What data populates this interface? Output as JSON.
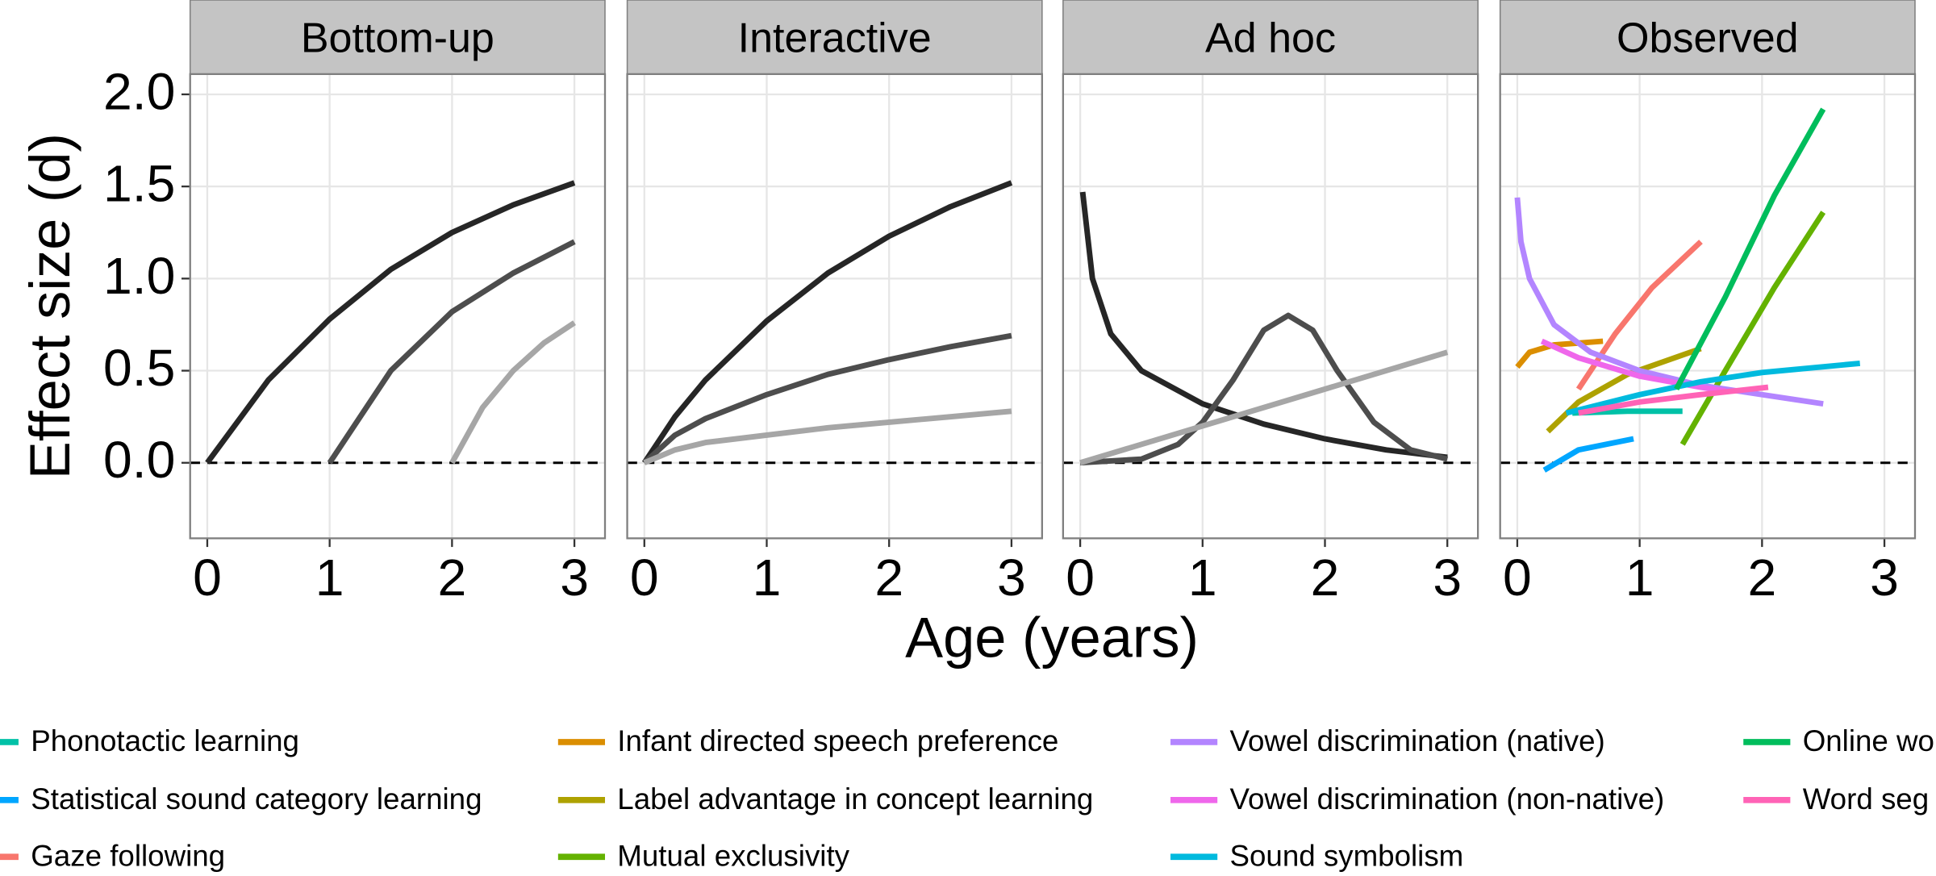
{
  "xlabel": "Age (years)",
  "ylabel": "Effect size (d)",
  "chart_data": [
    {
      "type": "line",
      "title": "Bottom-up",
      "xlim": [
        -0.14,
        3.25
      ],
      "xticks": [
        0,
        1,
        2,
        3
      ],
      "ylim": [
        -0.41,
        2.11
      ],
      "yticks": [
        {
          "value": 0,
          "label": "0.0"
        },
        {
          "value": 0.5,
          "label": "0.5"
        },
        {
          "value": 1,
          "label": "1.0"
        },
        {
          "value": 1.5,
          "label": "1.5"
        },
        {
          "value": 2,
          "label": "2.0"
        }
      ],
      "grid": true,
      "hline": 0,
      "series": [
        {
          "color": "#262626",
          "x": [
            0,
            0.5,
            1,
            1.5,
            2,
            2.5,
            3
          ],
          "values": [
            0,
            0.45,
            0.78,
            1.05,
            1.25,
            1.4,
            1.52
          ]
        },
        {
          "color": "#4d4d4d",
          "x": [
            1,
            1.5,
            2,
            2.5,
            3
          ],
          "values": [
            0,
            0.5,
            0.82,
            1.03,
            1.2
          ]
        },
        {
          "color": "#a6a6a6",
          "x": [
            2,
            2.25,
            2.5,
            2.75,
            3
          ],
          "values": [
            0,
            0.3,
            0.5,
            0.65,
            0.76
          ]
        }
      ]
    },
    {
      "type": "line",
      "title": "Interactive",
      "xlim": [
        -0.14,
        3.25
      ],
      "xticks": [
        0,
        1,
        2,
        3
      ],
      "ylim": [
        -0.41,
        2.11
      ],
      "yticks": [
        0,
        0.5,
        1,
        1.5,
        2
      ],
      "grid": true,
      "hline": 0,
      "series": [
        {
          "color": "#262626",
          "x": [
            0,
            0.25,
            0.5,
            1,
            1.5,
            2,
            2.5,
            3
          ],
          "values": [
            0,
            0.25,
            0.45,
            0.77,
            1.03,
            1.23,
            1.39,
            1.52
          ]
        },
        {
          "color": "#4d4d4d",
          "x": [
            0,
            0.25,
            0.5,
            1,
            1.5,
            2,
            2.5,
            3
          ],
          "values": [
            0,
            0.15,
            0.24,
            0.37,
            0.48,
            0.56,
            0.63,
            0.69
          ]
        },
        {
          "color": "#a6a6a6",
          "x": [
            0,
            0.25,
            0.5,
            1,
            1.5,
            2,
            2.5,
            3
          ],
          "values": [
            0,
            0.07,
            0.11,
            0.15,
            0.19,
            0.22,
            0.25,
            0.28
          ]
        }
      ]
    },
    {
      "type": "line",
      "title": "Ad hoc",
      "xlim": [
        -0.14,
        3.25
      ],
      "xticks": [
        0,
        1,
        2,
        3
      ],
      "ylim": [
        -0.41,
        2.11
      ],
      "yticks": [
        0,
        0.5,
        1,
        1.5,
        2
      ],
      "grid": true,
      "hline": 0,
      "series": [
        {
          "color": "#262626",
          "x": [
            0.02,
            0.1,
            0.25,
            0.5,
            1,
            1.5,
            2,
            2.5,
            3
          ],
          "values": [
            1.47,
            1.0,
            0.7,
            0.5,
            0.32,
            0.21,
            0.13,
            0.07,
            0.03
          ]
        },
        {
          "color": "#4d4d4d",
          "x": [
            0,
            0.5,
            0.8,
            1,
            1.25,
            1.5,
            1.7,
            1.9,
            2.1,
            2.4,
            2.7,
            3
          ],
          "values": [
            0,
            0.02,
            0.1,
            0.22,
            0.45,
            0.72,
            0.8,
            0.72,
            0.5,
            0.22,
            0.07,
            0.02
          ]
        },
        {
          "color": "#a6a6a6",
          "x": [
            0,
            3
          ],
          "values": [
            0,
            0.6
          ]
        }
      ]
    },
    {
      "type": "line",
      "title": "Observed",
      "xlim": [
        -0.14,
        3.25
      ],
      "xticks": [
        0,
        1,
        2,
        3
      ],
      "ylim": [
        -0.41,
        2.11
      ],
      "yticks": [
        0,
        0.5,
        1,
        1.5,
        2
      ],
      "grid": true,
      "hline": 0,
      "series": [
        {
          "name": "Phonotactic learning",
          "color": "#00C1A7",
          "x": [
            0.45,
            0.9,
            1.35
          ],
          "values": [
            0.27,
            0.28,
            0.28
          ]
        },
        {
          "name": "Statistical sound category learning",
          "color": "#00A6FF",
          "x": [
            0.22,
            0.5,
            0.95
          ],
          "values": [
            -0.04,
            0.07,
            0.13
          ]
        },
        {
          "name": "Gaze following",
          "color": "#F8766D",
          "x": [
            0.5,
            0.8,
            1.1,
            1.5
          ],
          "values": [
            0.4,
            0.7,
            0.95,
            1.2
          ]
        },
        {
          "name": "Infant directed speech preference",
          "color": "#DB8E00",
          "x": [
            0,
            0.1,
            0.3,
            0.5,
            0.7
          ],
          "values": [
            0.52,
            0.6,
            0.64,
            0.65,
            0.66
          ]
        },
        {
          "name": "Label advantage in concept learning",
          "color": "#AEA200",
          "x": [
            0.25,
            0.5,
            0.9,
            1.5
          ],
          "values": [
            0.17,
            0.33,
            0.48,
            0.62
          ]
        },
        {
          "name": "Mutual exclusivity",
          "color": "#64B200",
          "x": [
            1.35,
            1.7,
            2.1,
            2.5
          ],
          "values": [
            0.1,
            0.5,
            0.95,
            1.36
          ]
        },
        {
          "name": "Vowel discrimination (native)",
          "color": "#B385FF",
          "x": [
            0,
            0.03,
            0.1,
            0.3,
            0.6,
            1,
            1.5,
            2,
            2.5
          ],
          "values": [
            1.44,
            1.2,
            1.0,
            0.75,
            0.6,
            0.5,
            0.42,
            0.37,
            0.32
          ]
        },
        {
          "name": "Vowel discrimination (non-native)",
          "color": "#EF67EB",
          "x": [
            0.2,
            0.5,
            1,
            1.5,
            1.7
          ],
          "values": [
            0.66,
            0.57,
            0.47,
            0.41,
            0.39
          ]
        },
        {
          "name": "Sound symbolism",
          "color": "#00BADE",
          "x": [
            0.4,
            1,
            1.5,
            2,
            2.8
          ],
          "values": [
            0.27,
            0.37,
            0.44,
            0.49,
            0.54
          ]
        },
        {
          "name": "Online wo",
          "color": "#00BD5C",
          "x": [
            1.3,
            1.7,
            2.1,
            2.5
          ],
          "values": [
            0.4,
            0.9,
            1.45,
            1.92
          ]
        },
        {
          "name": "Word seg",
          "color": "#FF63B6",
          "x": [
            0.5,
            1,
            1.5,
            2.05
          ],
          "values": [
            0.27,
            0.33,
            0.37,
            0.41
          ]
        }
      ]
    }
  ]
}
